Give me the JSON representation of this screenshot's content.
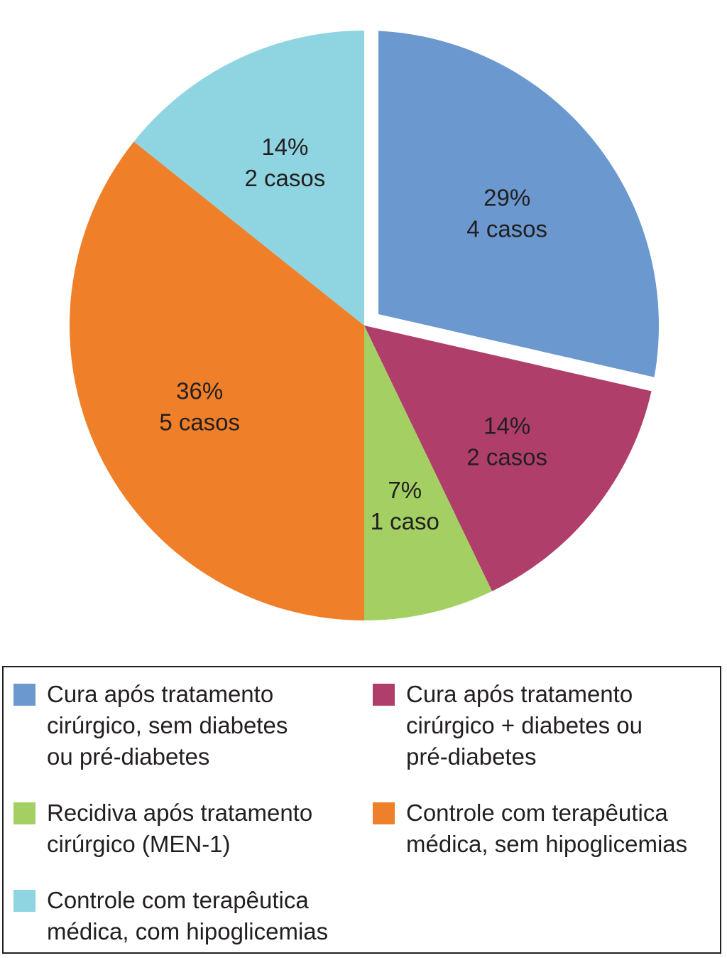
{
  "chart_data": {
    "type": "pie",
    "title": "",
    "slices": [
      {
        "percent_label": "29%",
        "count_label": "4 casos",
        "cases": 4,
        "color": "#6a98cf",
        "legend": "Cura após tratamento\ncirúrgico, sem diabetes\nou pré-diabetes"
      },
      {
        "percent_label": "14%",
        "count_label": "2 casos",
        "cases": 2,
        "color": "#b03e6a",
        "legend": "Cura após tratamento\ncirúrgico + diabetes ou\npré-diabetes"
      },
      {
        "percent_label": "7%",
        "count_label": "1 caso",
        "cases": 1,
        "color": "#a3cf63",
        "legend": "Recidiva após tratamento\ncirúrgico (MEN-1)"
      },
      {
        "percent_label": "36%",
        "count_label": "5 casos",
        "cases": 5,
        "color": "#f07f2a",
        "legend": "Controle com terapêutica\nmédica, sem hipoglicemias"
      },
      {
        "percent_label": "14%",
        "count_label": "2 casos",
        "cases": 2,
        "color": "#8fd5e1",
        "legend": "Controle com terapêutica\nmédica, com hipoglicemias"
      }
    ],
    "legend_position": "bottom"
  }
}
